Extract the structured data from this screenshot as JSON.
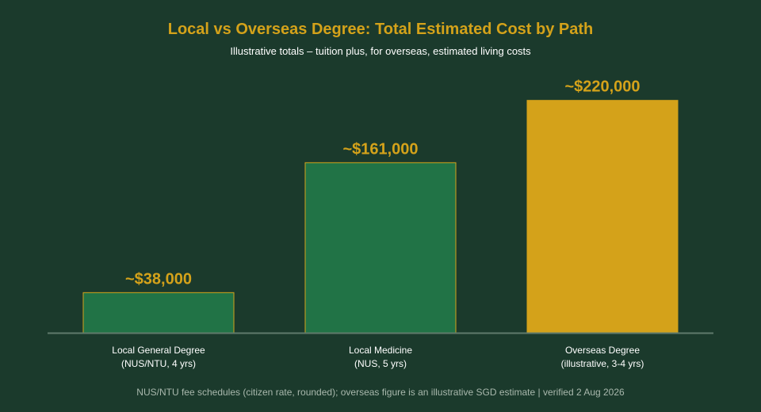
{
  "chart_data": {
    "type": "bar",
    "title": "Local vs Overseas Degree: Total Estimated Cost by Path",
    "subtitle": "Illustrative totals – tuition plus, for overseas, estimated living costs",
    "categories": [
      "Local General Degree\n(NUS/NTU, 4 yrs)",
      "Local Medicine\n(NUS, 5 yrs)",
      "Overseas Degree\n(illustrative, 3-4 yrs)"
    ],
    "values": [
      38000,
      161000,
      220000
    ],
    "value_labels": [
      "~$38,000",
      "~$161,000",
      "~$220,000"
    ],
    "bar_colors": [
      "#217346",
      "#217346",
      "#d4a21a"
    ],
    "xlabel": "",
    "ylabel": "",
    "ylim": [
      0,
      240000
    ],
    "grid": false,
    "legend": "none"
  },
  "footnote": "NUS/NTU fee schedules (citizen rate, rounded); overseas figure is an illustrative SGD estimate | verified 2 Aug 2026",
  "colors": {
    "background": "#1b3a2c",
    "accent": "#d4a21a",
    "bar_local": "#217346",
    "bar_overseas": "#d4a21a",
    "baseline": "#5f7a6b"
  }
}
